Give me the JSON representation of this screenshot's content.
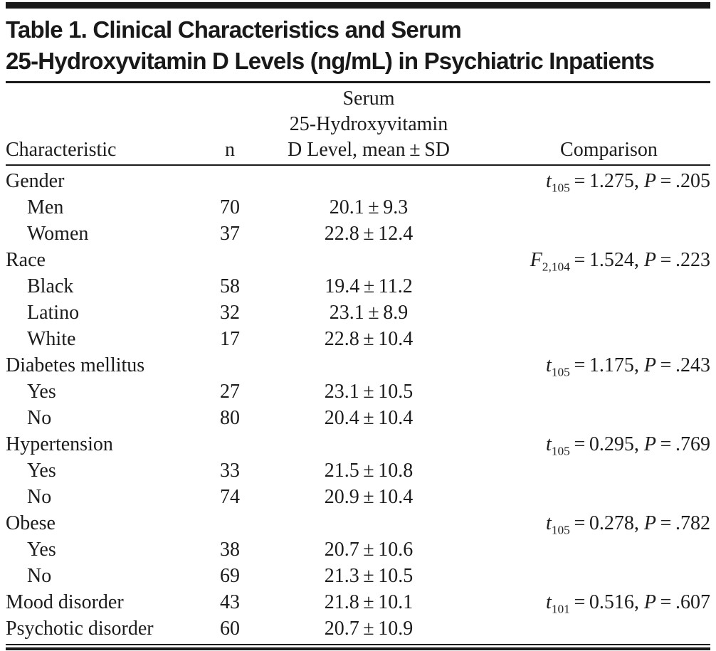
{
  "table": {
    "title_line1": "Table 1. Clinical Characteristics and Serum",
    "title_line2": "25-Hydroxyvitamin D Levels (ng/mL) in Psychiatric Inpatients",
    "header": {
      "characteristic": "Characteristic",
      "n": "n",
      "serum_line1": "Serum",
      "serum_line2": "25-Hydroxyvitamin",
      "serum_line3": "D Level, mean ± SD",
      "comparison": "Comparison"
    },
    "rows": [
      {
        "label": "Gender",
        "comparison": {
          "stat": "t",
          "sub": "105",
          "rest1": " = 1.275, ",
          "p": "P",
          "rest2": " = .205"
        }
      },
      {
        "label": "Men",
        "n": "70",
        "mean_sd": "20.1 ± 9.3"
      },
      {
        "label": "Women",
        "n": "37",
        "mean_sd": "22.8 ± 12.4"
      },
      {
        "label": "Race",
        "comparison": {
          "stat": "F",
          "sub": "2,104",
          "rest1": " = 1.524, ",
          "p": "P",
          "rest2": " = .223"
        }
      },
      {
        "label": "Black",
        "n": "58",
        "mean_sd": "19.4 ± 11.2"
      },
      {
        "label": "Latino",
        "n": "32",
        "mean_sd": "23.1 ± 8.9"
      },
      {
        "label": "White",
        "n": "17",
        "mean_sd": "22.8 ± 10.4"
      },
      {
        "label": "Diabetes mellitus",
        "comparison": {
          "stat": "t",
          "sub": "105",
          "rest1": " = 1.175, ",
          "p": "P",
          "rest2": " = .243"
        }
      },
      {
        "label": "Yes",
        "n": "27",
        "mean_sd": "23.1 ± 10.5"
      },
      {
        "label": "No",
        "n": "80",
        "mean_sd": "20.4 ± 10.4"
      },
      {
        "label": "Hypertension",
        "comparison": {
          "stat": "t",
          "sub": "105",
          "rest1": " = 0.295, ",
          "p": "P",
          "rest2": " = .769"
        }
      },
      {
        "label": "Yes",
        "n": "33",
        "mean_sd": "21.5 ± 10.8"
      },
      {
        "label": "No",
        "n": "74",
        "mean_sd": "20.9 ± 10.4"
      },
      {
        "label": "Obese",
        "comparison": {
          "stat": "t",
          "sub": "105",
          "rest1": " = 0.278, ",
          "p": "P",
          "rest2": " = .782"
        }
      },
      {
        "label": "Yes",
        "n": "38",
        "mean_sd": "20.7 ± 10.6"
      },
      {
        "label": "No",
        "n": "69",
        "mean_sd": "21.3 ± 10.5"
      },
      {
        "label": "Mood disorder",
        "n": "43",
        "mean_sd": "21.8 ± 10.1",
        "comparison": {
          "stat": "t",
          "sub": "101",
          "rest1": " = 0.516, ",
          "p": "P",
          "rest2": " = .607"
        }
      },
      {
        "label": "Psychotic disorder",
        "n": "60",
        "mean_sd": "20.7 ± 10.9"
      }
    ]
  }
}
